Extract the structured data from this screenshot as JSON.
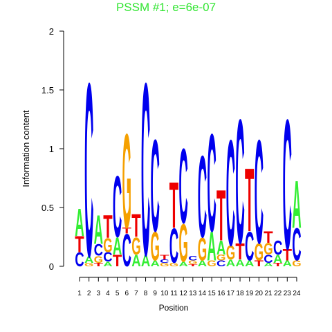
{
  "chart_data": {
    "type": "logo",
    "title": "PSSM #1; e=6e-07",
    "title_color": "#33e533",
    "xlabel": "Position",
    "ylabel": "Information content",
    "categories": [
      1,
      2,
      3,
      4,
      5,
      6,
      7,
      8,
      9,
      10,
      11,
      12,
      13,
      14,
      15,
      16,
      17,
      18,
      19,
      20,
      21,
      22,
      23,
      24
    ],
    "ylim": [
      0,
      2
    ],
    "yticks": [
      0,
      0.5,
      1,
      {
        "value": 1.5,
        "label": "1.5"
      },
      2
    ],
    "colors": {
      "A": "#33ee33",
      "C": "#0000ee",
      "G": "#f5a000",
      "T": "#ee0000"
    },
    "stacks": [
      [
        {
          "letter": "C",
          "height": 0.12
        },
        {
          "letter": "T",
          "height": 0.14
        },
        {
          "letter": "A",
          "height": 0.24
        }
      ],
      [
        {
          "letter": "G",
          "height": 0.03
        },
        {
          "letter": "A",
          "height": 0.06
        },
        {
          "letter": "C",
          "height": 1.51
        }
      ],
      [
        {
          "letter": "T",
          "height": 0.03
        },
        {
          "letter": "G",
          "height": 0.06
        },
        {
          "letter": "C",
          "height": 0.1
        },
        {
          "letter": "A",
          "height": 0.25
        }
      ],
      [
        {
          "letter": "A",
          "height": 0.04
        },
        {
          "letter": "C",
          "height": 0.08
        },
        {
          "letter": "G",
          "height": 0.12
        },
        {
          "letter": "T",
          "height": 0.2
        }
      ],
      [
        {
          "letter": "T",
          "height": 0.1
        },
        {
          "letter": "A",
          "height": 0.15
        },
        {
          "letter": "C",
          "height": 0.53
        }
      ],
      [
        {
          "letter": "C",
          "height": 0.28
        },
        {
          "letter": "T",
          "height": 0.05
        },
        {
          "letter": "G",
          "height": 0.82
        }
      ],
      [
        {
          "letter": "A",
          "height": 0.1
        },
        {
          "letter": "G",
          "height": 0.15
        },
        {
          "letter": "T",
          "height": 0.2
        }
      ],
      [
        {
          "letter": "A",
          "height": 0.1
        },
        {
          "letter": "C",
          "height": 1.5
        }
      ],
      [
        {
          "letter": "A",
          "height": 0.05
        },
        {
          "letter": "G",
          "height": 0.25
        },
        {
          "letter": "C",
          "height": 0.8
        }
      ],
      [
        {
          "letter": "G",
          "height": 0.03
        },
        {
          "letter": "C",
          "height": 0.03
        },
        {
          "letter": "T",
          "height": 0.04
        }
      ],
      [
        {
          "letter": "G",
          "height": 0.03
        },
        {
          "letter": "C",
          "height": 0.3
        },
        {
          "letter": "T",
          "height": 0.4
        }
      ],
      [
        {
          "letter": "A",
          "height": 0.04
        },
        {
          "letter": "G",
          "height": 0.33
        },
        {
          "letter": "C",
          "height": 0.65
        }
      ],
      [
        {
          "letter": "T",
          "height": 0.02
        },
        {
          "letter": "G",
          "height": 0.03
        },
        {
          "letter": "C",
          "height": 0.04
        }
      ],
      [
        {
          "letter": "A",
          "height": 0.05
        },
        {
          "letter": "G",
          "height": 0.2
        },
        {
          "letter": "C",
          "height": 0.71
        }
      ],
      [
        {
          "letter": "G",
          "height": 0.05
        },
        {
          "letter": "A",
          "height": 0.25
        },
        {
          "letter": "C",
          "height": 0.85
        }
      ],
      [
        {
          "letter": "C",
          "height": 0.05
        },
        {
          "letter": "G",
          "height": 0.05
        },
        {
          "letter": "A",
          "height": 0.12
        },
        {
          "letter": "T",
          "height": 0.44
        }
      ],
      [
        {
          "letter": "A",
          "height": 0.06
        },
        {
          "letter": "G",
          "height": 0.12
        },
        {
          "letter": "C",
          "height": 0.92
        }
      ],
      [
        {
          "letter": "A",
          "height": 0.06
        },
        {
          "letter": "T",
          "height": 0.14
        },
        {
          "letter": "C",
          "height": 1.08
        }
      ],
      [
        {
          "letter": "A",
          "height": 0.05
        },
        {
          "letter": "C",
          "height": 0.25
        },
        {
          "letter": "T",
          "height": 0.55
        }
      ],
      [
        {
          "letter": "T",
          "height": 0.05
        },
        {
          "letter": "G",
          "height": 0.15
        },
        {
          "letter": "C",
          "height": 0.9
        }
      ],
      [
        {
          "letter": "A",
          "height": 0.03
        },
        {
          "letter": "C",
          "height": 0.07
        },
        {
          "letter": "G",
          "height": 0.1
        },
        {
          "letter": "T",
          "height": 0.1
        }
      ],
      [
        {
          "letter": "T",
          "height": 0.03
        },
        {
          "letter": "A",
          "height": 0.07
        },
        {
          "letter": "C",
          "height": 0.12
        }
      ],
      [
        {
          "letter": "A",
          "height": 0.05
        },
        {
          "letter": "T",
          "height": 0.1
        },
        {
          "letter": "C",
          "height": 1.13
        }
      ],
      [
        {
          "letter": "G",
          "height": 0.05
        },
        {
          "letter": "C",
          "height": 0.28
        },
        {
          "letter": "A",
          "height": 0.41
        }
      ]
    ]
  }
}
